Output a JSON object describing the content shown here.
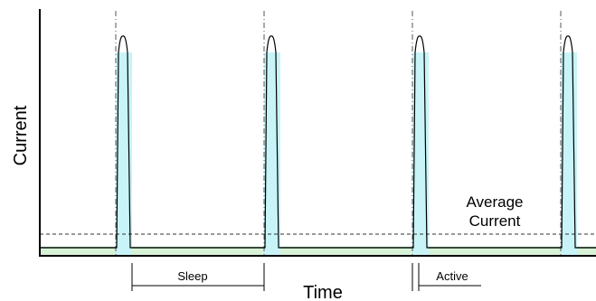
{
  "labels": {
    "y_axis": "Current",
    "x_axis": "Time",
    "average_line1": "Average",
    "average_line2": "Current",
    "sleep": "Sleep",
    "active": "Active"
  },
  "colors": {
    "pulse_fill": "#c8f4f8",
    "baseline_fill": "#d8f2d8",
    "baseline_stroke": "#3a8a3a",
    "axis": "#000000"
  }
}
